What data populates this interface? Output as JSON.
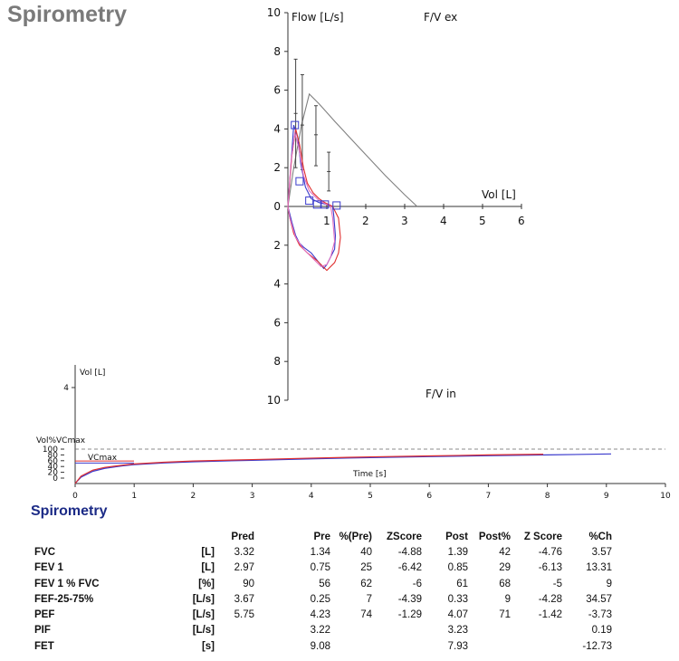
{
  "header": {
    "title": "Spirometry"
  },
  "chart_data": [
    {
      "type": "line",
      "name": "flow-volume",
      "label_ex": "F/V ex",
      "label_in": "F/V in",
      "ylabel": "Flow [L/s]",
      "xlabel": "Vol [L]",
      "xlim": [
        0,
        6
      ],
      "ylim": [
        -10,
        10
      ],
      "x_ticks": [
        "1",
        "2",
        "3",
        "4",
        "5",
        "6"
      ],
      "y_ticks_up": [
        "10",
        "8",
        "6",
        "4",
        "2",
        "0"
      ],
      "y_ticks_down": [
        "2",
        "4",
        "6",
        "8",
        "10"
      ],
      "predicted_curve": {
        "color": "#808080",
        "x": [
          0,
          0.15,
          0.35,
          0.55,
          0.8,
          1.2,
          1.8,
          2.5,
          3.0,
          3.32
        ],
        "y": [
          0,
          2.0,
          4.2,
          5.8,
          5.3,
          4.4,
          3.1,
          1.6,
          0.6,
          0
        ]
      },
      "error_bars": [
        {
          "x": 0.2,
          "y": 4.8,
          "low": 2.0,
          "high": 7.6
        },
        {
          "x": 0.37,
          "y": 4.2,
          "low": 1.9,
          "high": 6.8
        },
        {
          "x": 0.72,
          "y": 3.7,
          "low": 2.1,
          "high": 5.2
        },
        {
          "x": 1.05,
          "y": 1.8,
          "low": 0.8,
          "high": 2.8
        }
      ],
      "series": [
        {
          "name": "pre-blue",
          "color": "#3a3acc",
          "x": [
            0,
            0.08,
            0.15,
            0.25,
            0.33,
            0.45,
            0.6,
            0.8,
            1.0,
            1.1,
            1.15,
            1.18,
            1.22,
            1.2,
            1.1,
            1.0,
            0.92,
            0.8,
            0.6,
            0.4,
            0.3,
            0.2,
            0.1,
            0
          ],
          "y": [
            0,
            2.2,
            4.2,
            3.6,
            2.2,
            1.0,
            0.4,
            0.2,
            0.1,
            0.05,
            0,
            -0.5,
            -1.5,
            -2.2,
            -2.6,
            -3.0,
            -3.2,
            -2.9,
            -2.4,
            -2.1,
            -1.9,
            -1.5,
            -0.8,
            0
          ]
        },
        {
          "name": "post-red",
          "color": "#e03030",
          "x": [
            0,
            0.1,
            0.2,
            0.3,
            0.4,
            0.5,
            0.65,
            0.8,
            0.95,
            1.05,
            1.15,
            1.3,
            1.35,
            1.3,
            1.2,
            1.0,
            0.9,
            0.75,
            0.5,
            0.3,
            0.15,
            0.05,
            0
          ],
          "y": [
            0,
            2.6,
            4.0,
            3.2,
            2.0,
            1.2,
            0.7,
            0.4,
            0.2,
            0.1,
            0,
            -0.6,
            -1.6,
            -2.4,
            -2.9,
            -3.3,
            -3.1,
            -2.8,
            -2.4,
            -2.0,
            -1.4,
            -0.6,
            0
          ]
        },
        {
          "name": "pink",
          "color": "#e070c0",
          "x": [
            0,
            0.08,
            0.18,
            0.28,
            0.4,
            0.55,
            0.8,
            1.0,
            1.1,
            1.15,
            1.2,
            1.1,
            1.0,
            0.85,
            0.6,
            0.4,
            0.2,
            0.05,
            0
          ],
          "y": [
            0,
            2.3,
            3.8,
            3.0,
            1.6,
            0.8,
            0.3,
            0.1,
            0,
            -0.6,
            -1.8,
            -2.6,
            -3.0,
            -3.1,
            -2.6,
            -2.2,
            -1.6,
            -0.6,
            0
          ]
        }
      ],
      "markers": [
        {
          "x": 0.18,
          "y": 4.2
        },
        {
          "x": 0.3,
          "y": 1.3
        },
        {
          "x": 0.55,
          "y": 0.3
        },
        {
          "x": 0.75,
          "y": 0.1
        },
        {
          "x": 0.95,
          "y": 0.1
        },
        {
          "x": 1.25,
          "y": 0.05
        }
      ]
    },
    {
      "type": "line",
      "name": "volume-time",
      "ylabel": "Vol [L]",
      "pct_label": "Vol%VCmax",
      "vcmax_label": "VCmax",
      "xlabel": "Time [s]",
      "xlim": [
        0,
        10
      ],
      "ylim": [
        0,
        5
      ],
      "x_ticks": [
        "0",
        "1",
        "2",
        "3",
        "4",
        "5",
        "6",
        "7",
        "8",
        "9",
        "10"
      ],
      "y_ticks": [
        "4"
      ],
      "pct_ticks": [
        "100",
        "80",
        "60",
        "40",
        "20",
        "0"
      ],
      "series": [
        {
          "name": "vt-blue",
          "color": "#3a3acc",
          "x": [
            0,
            0.1,
            0.3,
            0.5,
            0.8,
            1.0,
            1.5,
            2,
            3,
            4,
            5,
            6,
            7,
            8,
            9.08
          ],
          "y": [
            0,
            0.26,
            0.5,
            0.62,
            0.72,
            0.77,
            0.84,
            0.89,
            0.95,
            1.01,
            1.06,
            1.1,
            1.14,
            1.17,
            1.21
          ]
        },
        {
          "name": "vt-red",
          "color": "#e03030",
          "x": [
            0,
            0.1,
            0.3,
            0.5,
            0.8,
            1.0,
            1.5,
            2,
            3,
            4,
            5,
            6,
            7,
            7.93
          ],
          "y": [
            0,
            0.3,
            0.55,
            0.66,
            0.75,
            0.8,
            0.87,
            0.92,
            0.98,
            1.04,
            1.09,
            1.13,
            1.17,
            1.2
          ]
        }
      ],
      "vcmax_level": 1.38
    }
  ],
  "results": {
    "title": "Spirometry",
    "headers": [
      "",
      "",
      "Pred",
      "Pre",
      "%(Pre)",
      "ZScore",
      "Post",
      "Post%",
      "Z Score",
      "%Ch"
    ],
    "rows": [
      [
        "FVC",
        "[L]",
        "3.32",
        "1.34",
        "40",
        "-4.88",
        "1.39",
        "42",
        "-4.76",
        "3.57"
      ],
      [
        "FEV 1",
        "[L]",
        "2.97",
        "0.75",
        "25",
        "-6.42",
        "0.85",
        "29",
        "-6.13",
        "13.31"
      ],
      [
        "FEV 1 % FVC",
        "[%]",
        "90",
        "56",
        "62",
        "-6",
        "61",
        "68",
        "-5",
        "9"
      ],
      [
        "FEF-25-75%",
        "[L/s]",
        "3.67",
        "0.25",
        "7",
        "-4.39",
        "0.33",
        "9",
        "-4.28",
        "34.57"
      ],
      [
        "PEF",
        "[L/s]",
        "5.75",
        "4.23",
        "74",
        "-1.29",
        "4.07",
        "71",
        "-1.42",
        "-3.73"
      ],
      [
        "PIF",
        "[L/s]",
        "",
        "3.22",
        "",
        "",
        "3.23",
        "",
        "",
        "0.19"
      ],
      [
        "FET",
        "[s]",
        "",
        "9.08",
        "",
        "",
        "7.93",
        "",
        "",
        "-12.73"
      ]
    ]
  }
}
